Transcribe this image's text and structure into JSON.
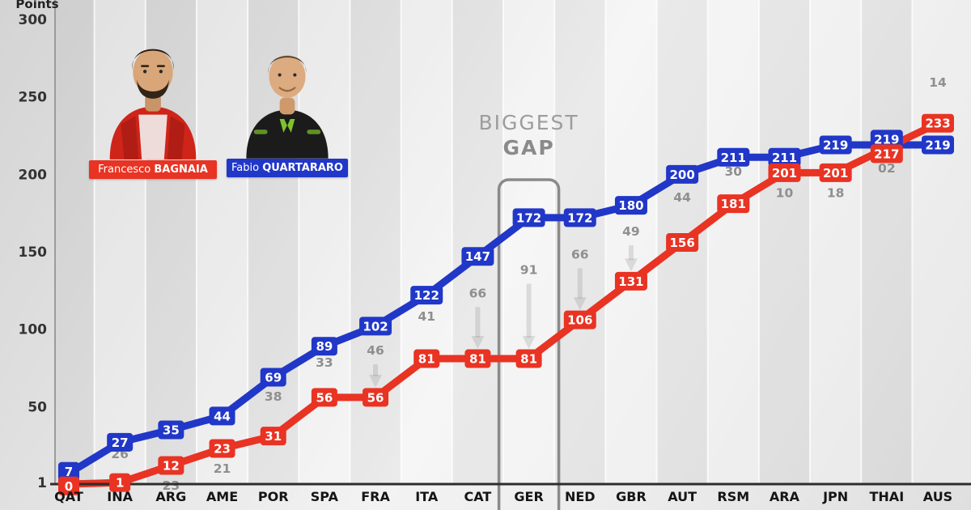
{
  "axis": {
    "y_title": "Points",
    "y_ticks": [
      300,
      250,
      200,
      150,
      100,
      50,
      1
    ]
  },
  "riders": [
    {
      "first": "Francesco",
      "last": "BAGNAIA",
      "color": "#e93323"
    },
    {
      "first": "Fabio",
      "last": "QUARTARARO",
      "color": "#2137c8"
    }
  ],
  "annotation": {
    "line1": "BIGGEST",
    "line2": "GAP",
    "target_category": "GER"
  },
  "chart_data": {
    "type": "line",
    "title": "",
    "categories": [
      "QAT",
      "INA",
      "ARG",
      "AME",
      "POR",
      "SPA",
      "FRA",
      "ITA",
      "CAT",
      "GER",
      "NED",
      "GBR",
      "AUT",
      "RSM",
      "ARA",
      "JPN",
      "THAI",
      "AUS"
    ],
    "series": [
      {
        "name": "Fabio Quartararo",
        "color": "#2137c8",
        "values": [
          7,
          27,
          35,
          44,
          69,
          89,
          102,
          122,
          147,
          172,
          172,
          180,
          200,
          211,
          211,
          219,
          219,
          219
        ]
      },
      {
        "name": "Francesco Bagnaia",
        "color": "#e93323",
        "values": [
          0,
          1,
          12,
          23,
          31,
          56,
          56,
          81,
          81,
          81,
          106,
          131,
          156,
          181,
          201,
          201,
          217,
          233
        ]
      }
    ],
    "gap_labels": [
      "",
      "26",
      "23",
      "21",
      "38",
      "33",
      "46",
      "41",
      "66",
      "91",
      "66",
      "49",
      "44",
      "30",
      "10",
      "18",
      "02",
      "14"
    ],
    "ylabel": "Points",
    "xlabel": "",
    "ylim": [
      0,
      300
    ],
    "grid": "vertical-bands",
    "legend": "photo-cards-top-left",
    "biggest_gap": {
      "category": "GER",
      "value": 91
    }
  }
}
